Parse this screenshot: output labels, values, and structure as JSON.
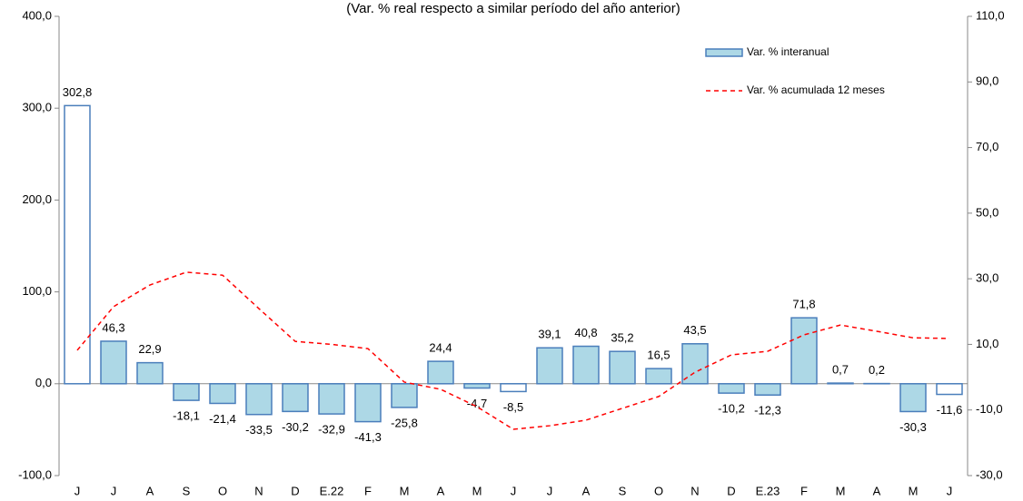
{
  "chart_data": {
    "type": "bar",
    "subtitle": "(Var. % real respecto a similar período del año anterior)",
    "categories": [
      "J",
      "J",
      "A",
      "S",
      "O",
      "N",
      "D",
      "E.22",
      "F",
      "M",
      "A",
      "M",
      "J",
      "J",
      "A",
      "S",
      "O",
      "N",
      "D",
      "E.23",
      "F",
      "M",
      "A",
      "M",
      "J"
    ],
    "series": [
      {
        "name": "Var. % interanual",
        "type": "bar",
        "axis": "y",
        "color": "#add8e6",
        "edge_color": "#4a7ebb",
        "bar_colors": [
          "#ffffff",
          "#add8e6",
          "#add8e6",
          "#add8e6",
          "#add8e6",
          "#add8e6",
          "#add8e6",
          "#add8e6",
          "#add8e6",
          "#add8e6",
          "#add8e6",
          "#add8e6",
          "#ffffff",
          "#add8e6",
          "#add8e6",
          "#add8e6",
          "#add8e6",
          "#add8e6",
          "#add8e6",
          "#add8e6",
          "#add8e6",
          "#add8e6",
          "#add8e6",
          "#add8e6",
          "#ffffff"
        ],
        "values": [
          302.8,
          46.3,
          22.9,
          -18.1,
          -21.4,
          -33.5,
          -30.2,
          -32.9,
          -41.3,
          -25.8,
          24.4,
          -4.7,
          -8.5,
          39.1,
          40.8,
          35.2,
          16.5,
          43.5,
          -10.2,
          -12.3,
          71.8,
          0.7,
          0.2,
          -30.3,
          -11.6
        ],
        "value_labels": [
          "302,8",
          "46,3",
          "22,9",
          "-18,1",
          "-21,4",
          "-33,5",
          "-30,2",
          "-32,9",
          "-41,3",
          "-25,8",
          "24,4",
          "-4,7",
          "-8,5",
          "39,1",
          "40,8",
          "35,2",
          "16,5",
          "43,5",
          "-10,2",
          "-12,3",
          "71,8",
          "0,7",
          "0,2",
          "-30,3",
          "-11,6"
        ]
      },
      {
        "name": "Var. % acumulada 12 meses",
        "type": "line",
        "axis": "y2",
        "color": "#ff0000",
        "values": [
          8.2,
          21.5,
          28.1,
          32.0,
          31.1,
          20.9,
          10.9,
          10.0,
          8.7,
          -1.5,
          -3.7,
          -9.0,
          -15.9,
          -14.8,
          -13.1,
          -9.5,
          -5.9,
          1.5,
          6.8,
          7.9,
          12.9,
          15.9,
          14.0,
          12.0,
          11.8
        ]
      }
    ],
    "ylim": [
      -100,
      400
    ],
    "yticks": [
      {
        "value": -100,
        "label": "-100,0"
      },
      {
        "value": 0,
        "label": "0,0"
      },
      {
        "value": 100,
        "label": "100,0"
      },
      {
        "value": 200,
        "label": "200,0"
      },
      {
        "value": 300,
        "label": "300,0"
      },
      {
        "value": 400,
        "label": "400,0"
      }
    ],
    "y2lim": [
      -30,
      110
    ],
    "y2ticks": [
      {
        "value": -30,
        "label": "-30,0"
      },
      {
        "value": -10,
        "label": "-10,0"
      },
      {
        "value": 10,
        "label": "10,0"
      },
      {
        "value": 30,
        "label": "30,0"
      },
      {
        "value": 50,
        "label": "50,0"
      },
      {
        "value": 70,
        "label": "70,0"
      },
      {
        "value": 90,
        "label": "90,0"
      },
      {
        "value": 110,
        "label": "110,0"
      }
    ],
    "grid": false,
    "legend": "upper right"
  }
}
